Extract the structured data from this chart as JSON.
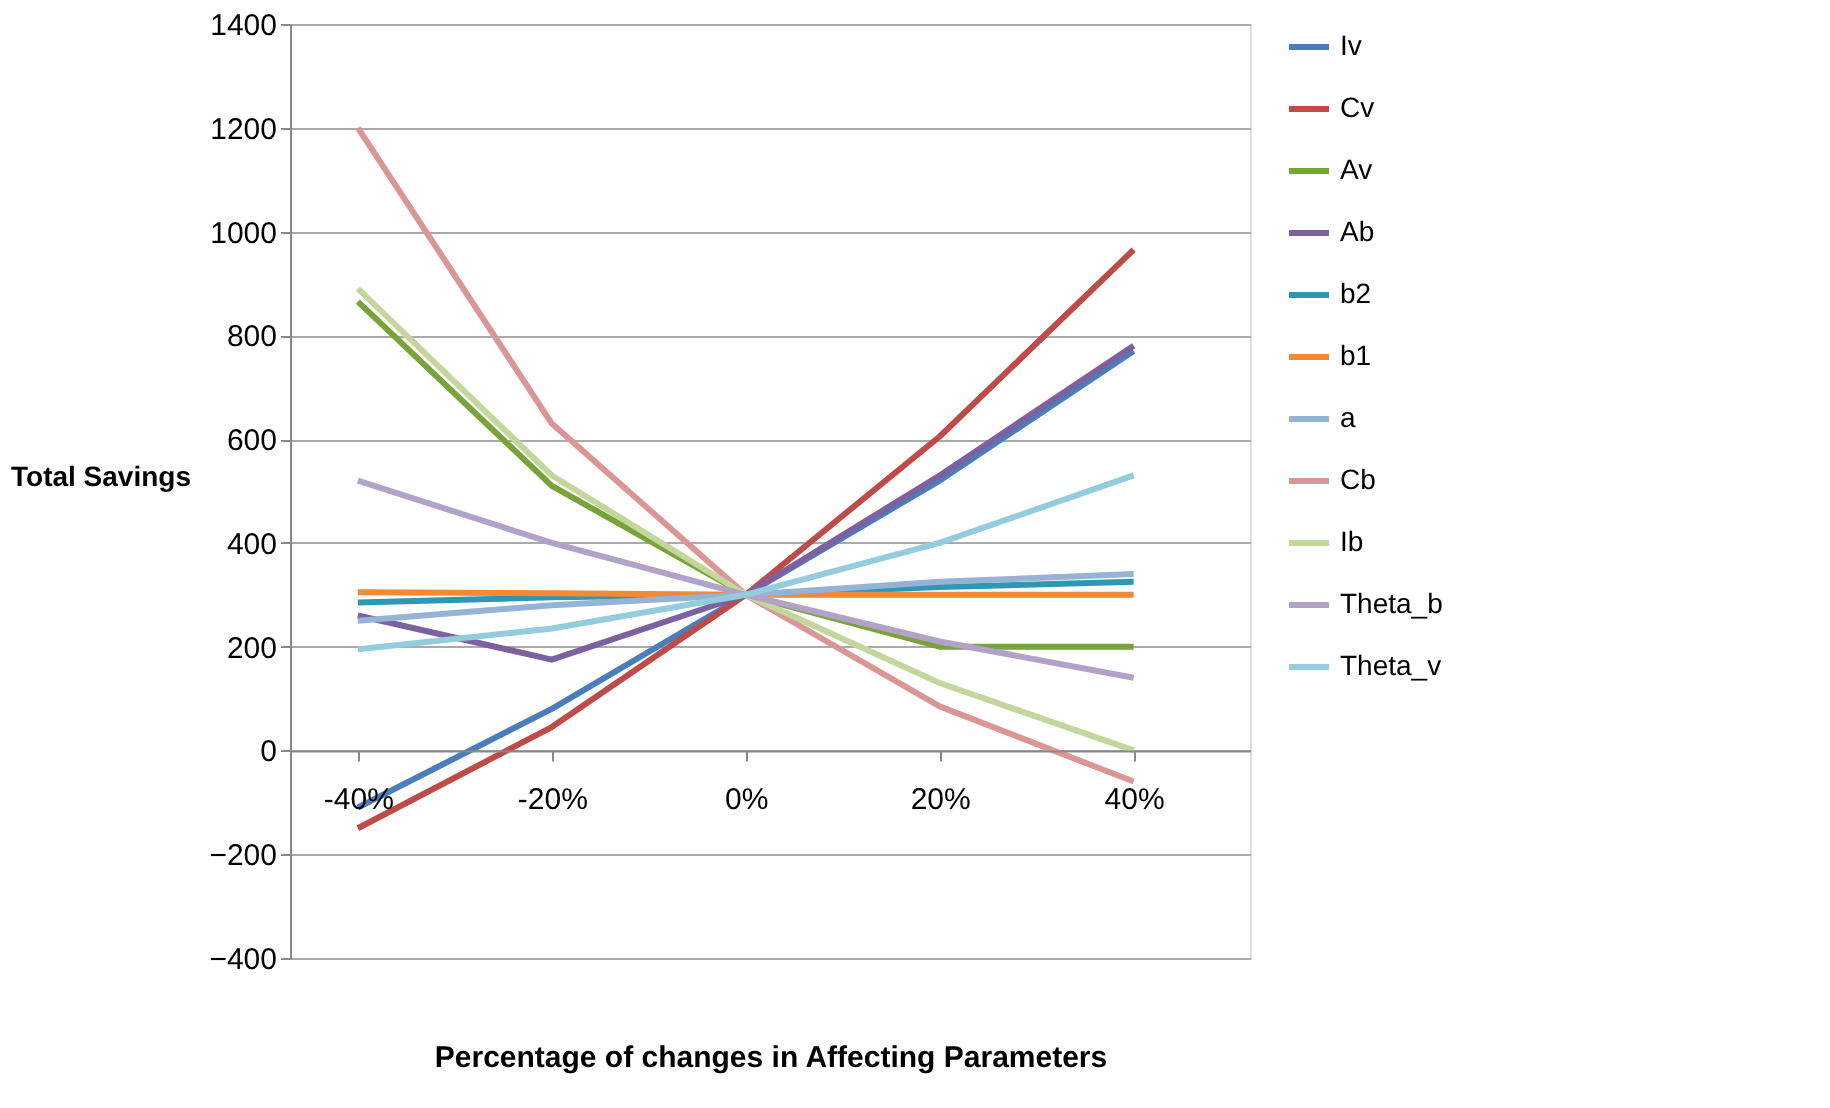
{
  "chart_data": {
    "type": "line",
    "xlabel": "Percentage of changes in Affecting Parameters",
    "ylabel": "Total Savings",
    "categories": [
      "-40%",
      "-20%",
      "0%",
      "20%",
      "40%"
    ],
    "series": [
      {
        "name": "Iv",
        "color": "#4a7ebb",
        "values": [
          -110,
          80,
          300,
          520,
          770
        ]
      },
      {
        "name": "Cv",
        "color": "#be4b48",
        "values": [
          -150,
          45,
          300,
          605,
          965
        ]
      },
      {
        "name": "Av",
        "color": "#77a33a",
        "values": [
          865,
          510,
          300,
          200,
          200
        ]
      },
      {
        "name": "Ab",
        "color": "#7d60a0",
        "values": [
          260,
          175,
          300,
          530,
          780
        ]
      },
      {
        "name": "b2",
        "color": "#2f96b4",
        "values": [
          285,
          295,
          300,
          315,
          325
        ]
      },
      {
        "name": "b1",
        "color": "#f08a36",
        "values": [
          305,
          303,
          300,
          300,
          300
        ]
      },
      {
        "name": "a",
        "color": "#95b3d7",
        "values": [
          250,
          280,
          300,
          325,
          340
        ]
      },
      {
        "name": "Cb",
        "color": "#d99694",
        "values": [
          1200,
          630,
          300,
          85,
          -60
        ]
      },
      {
        "name": "Ib",
        "color": "#c3d69b",
        "values": [
          890,
          530,
          300,
          130,
          0
        ]
      },
      {
        "name": "Theta_b",
        "color": "#b3a2c7",
        "values": [
          520,
          400,
          300,
          210,
          140
        ]
      },
      {
        "name": "Theta_v",
        "color": "#93cddd",
        "values": [
          195,
          235,
          300,
          400,
          530
        ]
      }
    ],
    "ylim": [
      -400,
      1400
    ],
    "yticks": [
      -400,
      -200,
      0,
      200,
      400,
      600,
      800,
      1000,
      1200,
      1400
    ],
    "grid": "y",
    "legend": "right",
    "marker": "none",
    "line_style": "solid"
  }
}
